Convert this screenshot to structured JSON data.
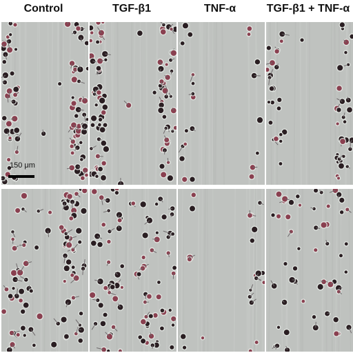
{
  "columns": [
    {
      "label": "Control"
    },
    {
      "label": "TGF-β1"
    },
    {
      "label": "TNF-α"
    },
    {
      "label": "TGF-β1 + TNF-α"
    }
  ],
  "rows": 2,
  "scale_bar": {
    "label": "150 μm"
  },
  "colors": {
    "background": "#bfc2bf",
    "cell_dark": "#2a1e22",
    "cell_light": "#e8ece8",
    "cell_nucleus": "#8a4050"
  },
  "panels": [
    {
      "name": "panel-control-top",
      "density": "high",
      "gap": "open"
    },
    {
      "name": "panel-tgf-top",
      "density": "high",
      "gap": "open"
    },
    {
      "name": "panel-tnf-top",
      "density": "low",
      "gap": "open"
    },
    {
      "name": "panel-combo-top",
      "density": "medium",
      "gap": "open"
    },
    {
      "name": "panel-control-bottom",
      "density": "high",
      "gap": "partial"
    },
    {
      "name": "panel-tgf-bottom",
      "density": "high",
      "gap": "closing"
    },
    {
      "name": "panel-tnf-bottom",
      "density": "low",
      "gap": "open"
    },
    {
      "name": "panel-combo-bottom",
      "density": "medium",
      "gap": "closing"
    }
  ]
}
